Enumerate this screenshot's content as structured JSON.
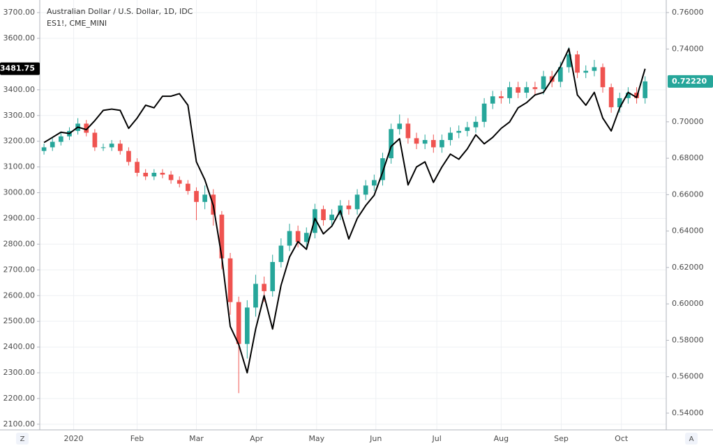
{
  "chart_data": {
    "type": "candlestick",
    "grid": true,
    "xlim": [
      -0.5,
      73.5
    ],
    "xticks": [
      {
        "value": 3.5,
        "label": "2020"
      },
      {
        "value": 11,
        "label": "Feb"
      },
      {
        "value": 18,
        "label": "Mar"
      },
      {
        "value": 25.1,
        "label": "Apr"
      },
      {
        "value": 32.2,
        "label": "May"
      },
      {
        "value": 39.2,
        "label": "Jun"
      },
      {
        "value": 46.4,
        "label": "Jul"
      },
      {
        "value": 54,
        "label": "Aug"
      },
      {
        "value": 61.1,
        "label": "Sep"
      },
      {
        "value": 68.2,
        "label": "Oct"
      }
    ],
    "ylim": [
      2078,
      3749
    ],
    "yticks": [
      {
        "value": 2100,
        "label": "2100.00"
      },
      {
        "value": 2200,
        "label": "2200.00"
      },
      {
        "value": 2300,
        "label": "2300.00"
      },
      {
        "value": 2400,
        "label": "2400.00"
      },
      {
        "value": 2500,
        "label": "2500.00"
      },
      {
        "value": 2600,
        "label": "2600.00"
      },
      {
        "value": 2700,
        "label": "2700.00"
      },
      {
        "value": 2800,
        "label": "2800.00"
      },
      {
        "value": 2900,
        "label": "2900.00"
      },
      {
        "value": 3000,
        "label": "3000.00"
      },
      {
        "value": 3100,
        "label": "3100.00"
      },
      {
        "value": 3200,
        "label": "3200.00"
      },
      {
        "value": 3300,
        "label": "3300.00"
      },
      {
        "value": 3400,
        "label": "3400.00"
      },
      {
        "value": 3600,
        "label": "3600.00"
      },
      {
        "value": 3700,
        "label": "3700.00"
      }
    ],
    "y2lim": [
      0.5308,
      0.7669
    ],
    "y2ticks": [
      {
        "value": 0.54,
        "label": "0.54000"
      },
      {
        "value": 0.56,
        "label": "0.56000"
      },
      {
        "value": 0.58,
        "label": "0.58000"
      },
      {
        "value": 0.6,
        "label": "0.60000"
      },
      {
        "value": 0.62,
        "label": "0.62000"
      },
      {
        "value": 0.64,
        "label": "0.64000"
      },
      {
        "value": 0.66,
        "label": "0.66000"
      },
      {
        "value": 0.68,
        "label": "0.68000"
      },
      {
        "value": 0.7,
        "label": "0.70000"
      },
      {
        "value": 0.74,
        "label": "0.74000"
      },
      {
        "value": 0.76,
        "label": "0.76000"
      }
    ],
    "series": [
      {
        "name": "Australian Dollar / U.S. Dollar, 1D, IDC",
        "type": "candlestick",
        "axis": "y2",
        "up_color": "#26a69a",
        "down_color": "#ef5350",
        "open": [
          0.684,
          0.686,
          0.689,
          0.692,
          0.695,
          0.699,
          0.694,
          0.686,
          0.686,
          0.688,
          0.684,
          0.678,
          0.672,
          0.67,
          0.672,
          0.671,
          0.668,
          0.666,
          0.662,
          0.656,
          0.66,
          0.649,
          0.625,
          0.601,
          0.578,
          0.598,
          0.611,
          0.607,
          0.623,
          0.632,
          0.64,
          0.634,
          0.639,
          0.652,
          0.646,
          0.649,
          0.654,
          0.652,
          0.66,
          0.665,
          0.668,
          0.68,
          0.696,
          0.699,
          0.691,
          0.688,
          0.69,
          0.686,
          0.69,
          0.694,
          0.695,
          0.697,
          0.7,
          0.71,
          0.714,
          0.713,
          0.719,
          0.716,
          0.719,
          0.718,
          0.725,
          0.722,
          0.73,
          0.737,
          0.727,
          0.728,
          0.73,
          0.719,
          0.708,
          0.713,
          0.716,
          0.713
        ],
        "high": [
          0.688,
          0.691,
          0.694,
          0.697,
          0.702,
          0.701,
          0.696,
          0.688,
          0.69,
          0.69,
          0.686,
          0.68,
          0.674,
          0.674,
          0.674,
          0.673,
          0.67,
          0.668,
          0.664,
          0.665,
          0.663,
          0.651,
          0.628,
          0.604,
          0.602,
          0.616,
          0.615,
          0.627,
          0.636,
          0.644,
          0.643,
          0.642,
          0.655,
          0.654,
          0.652,
          0.657,
          0.657,
          0.663,
          0.668,
          0.671,
          0.683,
          0.699,
          0.704,
          0.702,
          0.694,
          0.693,
          0.693,
          0.693,
          0.697,
          0.698,
          0.7,
          0.703,
          0.713,
          0.717,
          0.717,
          0.722,
          0.722,
          0.722,
          0.722,
          0.728,
          0.728,
          0.733,
          0.741,
          0.739,
          0.731,
          0.734,
          0.732,
          0.721,
          0.716,
          0.719,
          0.719,
          0.725
        ],
        "low": [
          0.682,
          0.684,
          0.687,
          0.69,
          0.693,
          0.692,
          0.684,
          0.684,
          0.684,
          0.682,
          0.676,
          0.67,
          0.668,
          0.668,
          0.669,
          0.666,
          0.664,
          0.66,
          0.646,
          0.652,
          0.643,
          0.619,
          0.594,
          0.551,
          0.57,
          0.593,
          0.601,
          0.604,
          0.62,
          0.629,
          0.631,
          0.631,
          0.636,
          0.643,
          0.643,
          0.646,
          0.649,
          0.649,
          0.657,
          0.662,
          0.665,
          0.677,
          0.693,
          0.688,
          0.685,
          0.685,
          0.683,
          0.683,
          0.687,
          0.691,
          0.692,
          0.694,
          0.697,
          0.707,
          0.71,
          0.71,
          0.713,
          0.713,
          0.715,
          0.715,
          0.719,
          0.719,
          0.727,
          0.724,
          0.724,
          0.725,
          0.716,
          0.705,
          0.705,
          0.71,
          0.71,
          0.71
        ],
        "close": [
          0.686,
          0.689,
          0.692,
          0.695,
          0.699,
          0.694,
          0.686,
          0.686,
          0.688,
          0.684,
          0.678,
          0.672,
          0.67,
          0.672,
          0.671,
          0.668,
          0.666,
          0.662,
          0.656,
          0.66,
          0.649,
          0.625,
          0.601,
          0.578,
          0.598,
          0.611,
          0.607,
          0.623,
          0.632,
          0.64,
          0.634,
          0.639,
          0.652,
          0.646,
          0.649,
          0.654,
          0.652,
          0.66,
          0.665,
          0.668,
          0.68,
          0.696,
          0.699,
          0.691,
          0.688,
          0.69,
          0.686,
          0.69,
          0.694,
          0.695,
          0.697,
          0.7,
          0.71,
          0.714,
          0.713,
          0.719,
          0.716,
          0.719,
          0.718,
          0.725,
          0.722,
          0.73,
          0.737,
          0.727,
          0.728,
          0.73,
          0.719,
          0.708,
          0.713,
          0.716,
          0.713,
          0.7222
        ]
      },
      {
        "name": "ES1!, CME_MINI",
        "type": "line",
        "axis": "y",
        "color": "#000000",
        "values": [
          3195,
          3215,
          3235,
          3230,
          3255,
          3245,
          3280,
          3320,
          3325,
          3320,
          3250,
          3290,
          3340,
          3330,
          3375,
          3375,
          3385,
          3340,
          3120,
          3050,
          2950,
          2750,
          2480,
          2410,
          2300,
          2470,
          2600,
          2470,
          2640,
          2750,
          2810,
          2780,
          2900,
          2840,
          2870,
          2930,
          2820,
          2900,
          2950,
          2990,
          3080,
          3180,
          3210,
          3030,
          3100,
          3120,
          3040,
          3100,
          3150,
          3130,
          3170,
          3225,
          3190,
          3215,
          3250,
          3275,
          3330,
          3350,
          3380,
          3390,
          3440,
          3490,
          3560,
          3380,
          3340,
          3390,
          3290,
          3240,
          3330,
          3390,
          3370,
          3481.75
        ]
      }
    ],
    "markers": [
      {
        "value": 3481.75,
        "label": "3481.75",
        "axis": "y",
        "color": "#000000"
      },
      {
        "value": 0.7222,
        "label": "0.72220",
        "axis": "y2",
        "color": "#26a69a"
      }
    ]
  },
  "ui": {
    "buttons": [
      "Z",
      "A"
    ]
  }
}
